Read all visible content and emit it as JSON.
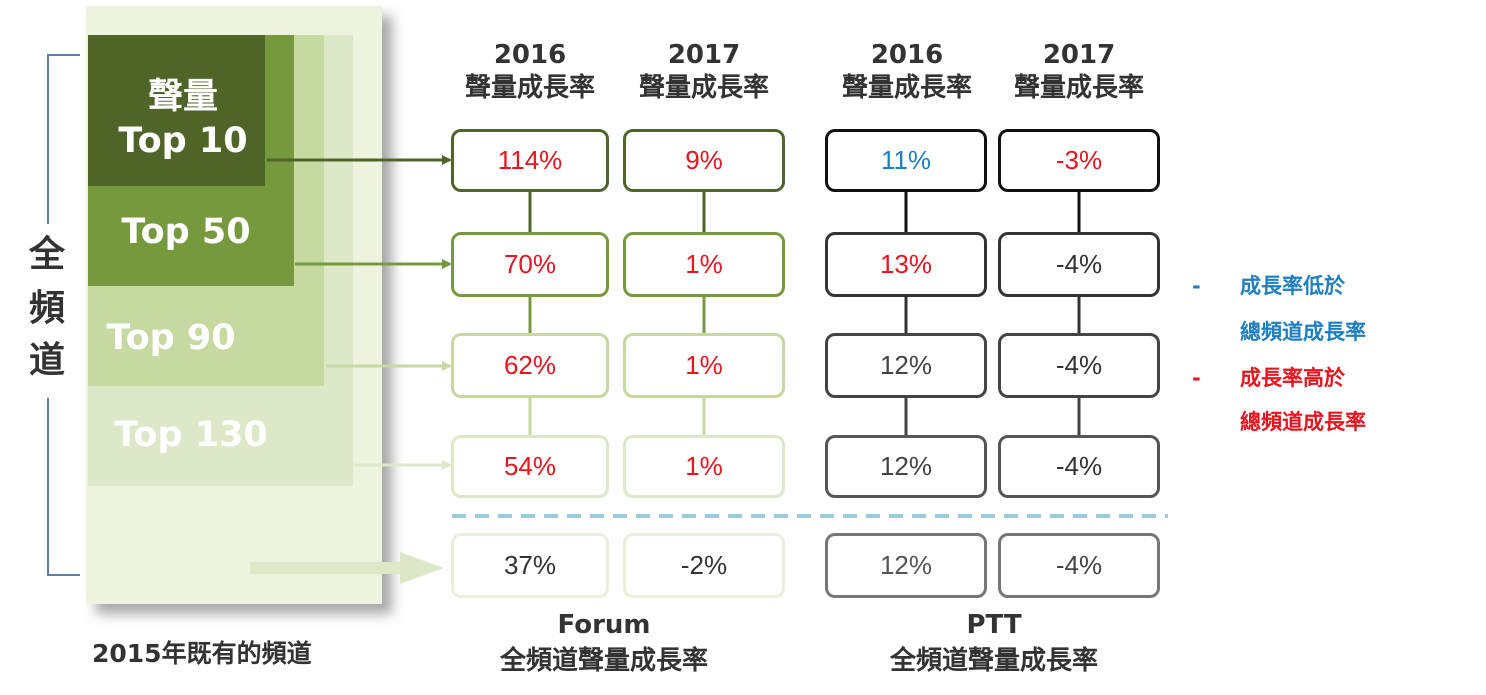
{
  "side_label": [
    "全",
    "頻",
    "道"
  ],
  "bottom_caption": "2015年既有的頻道",
  "tiers": {
    "top10_line1": "聲量",
    "top10_line2": "Top 10",
    "top50": "Top 50",
    "top90": "Top 90",
    "top130": "Top 130"
  },
  "columns": [
    {
      "year": "2016",
      "label": "聲量成長率"
    },
    {
      "year": "2017",
      "label": "聲量成長率"
    },
    {
      "year": "2016",
      "label": "聲量成長率"
    },
    {
      "year": "2017",
      "label": "聲量成長率"
    }
  ],
  "table": [
    [
      "114%",
      "9%",
      "11%",
      "-3%"
    ],
    [
      "70%",
      "1%",
      "13%",
      "-4%"
    ],
    [
      "62%",
      "1%",
      "12%",
      "-4%"
    ],
    [
      "54%",
      "1%",
      "12%",
      "-4%"
    ],
    [
      "37%",
      "-2%",
      "12%",
      "-4%"
    ]
  ],
  "footer": {
    "forum_line1": "Forum",
    "forum_line2": "全頻道聲量成長率",
    "ptt_line1": "PTT",
    "ptt_line2": "全頻道聲量成長率"
  },
  "legend": {
    "dash": "-",
    "low_line1": "成長率低於",
    "low_line2": "總頻道成長率",
    "high_line1": "成長率高於",
    "high_line2": "總頻道成長率"
  },
  "colors": {
    "tier10": "#4f6528",
    "tier50": "#77993e",
    "tier90": "#c5d9a1",
    "tier130": "#dde8c8",
    "panel": "#eef3e0",
    "high": "#e8141e",
    "low": "#1f7fc0",
    "neutral": "#333333",
    "dashed_divider": "#9ccbe0"
  }
}
